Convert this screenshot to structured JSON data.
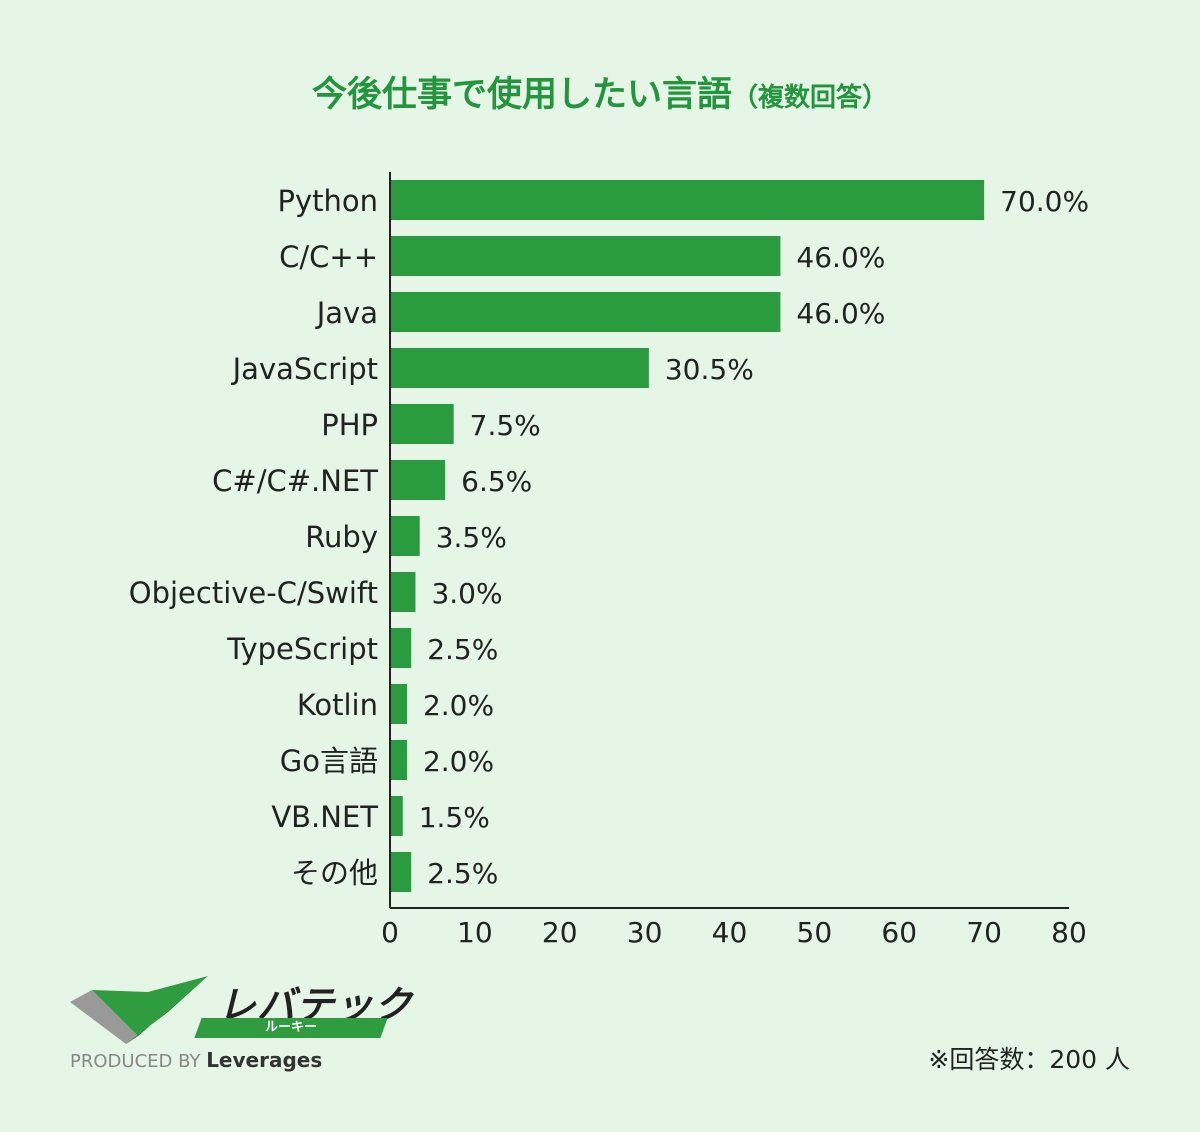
{
  "title": {
    "main": "今後仕事で使用したい言語",
    "sub": "（複数回答）"
  },
  "chart_data": {
    "type": "bar",
    "orientation": "horizontal",
    "categories": [
      "Python",
      "C/C++",
      "Java",
      "JavaScript",
      "PHP",
      "C#/C#.NET",
      "Ruby",
      "Objective-C/Swift",
      "TypeScript",
      "Kotlin",
      "Go言語",
      "VB.NET",
      "その他"
    ],
    "values": [
      70.0,
      46.0,
      46.0,
      30.5,
      7.5,
      6.5,
      3.5,
      3.0,
      2.5,
      2.0,
      2.0,
      1.5,
      2.5
    ],
    "value_labels": [
      "70.0%",
      "46.0%",
      "46.0%",
      "30.5%",
      "7.5%",
      "6.5%",
      "3.5%",
      "3.0%",
      "2.5%",
      "2.0%",
      "2.0%",
      "1.5%",
      "2.5%"
    ],
    "xlim": [
      0,
      80
    ],
    "xticks": [
      0,
      10,
      20,
      30,
      40,
      50,
      60,
      70,
      80
    ],
    "grid": false,
    "bar_color": "#2a9b3e"
  },
  "logo": {
    "name": "レバテック",
    "sub": "ルーキー",
    "produced_by": "PRODUCED BY",
    "brand": "Leverages"
  },
  "note": "※回答数：200 人"
}
